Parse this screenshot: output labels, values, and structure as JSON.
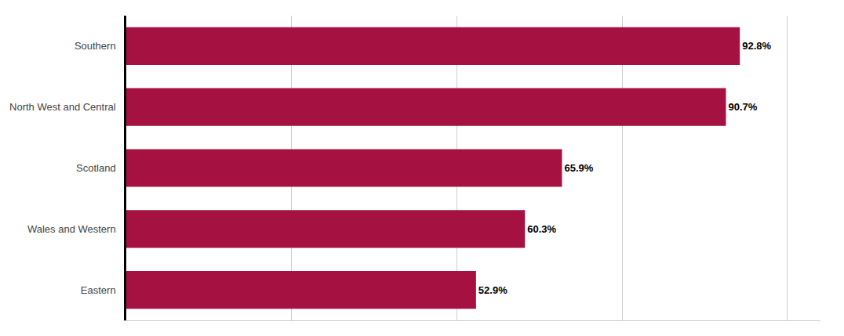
{
  "chart_data": {
    "type": "bar",
    "orientation": "horizontal",
    "categories": [
      "Southern",
      "North West and Central",
      "Scotland",
      "Wales and Western",
      "Eastern"
    ],
    "values": [
      92.8,
      90.7,
      65.9,
      60.3,
      52.9
    ],
    "value_labels": [
      "92.8%",
      "90.7%",
      "65.9%",
      "60.3%",
      "52.9%"
    ],
    "data_labels": true,
    "color": "#A51140",
    "xlim": [
      0,
      105
    ],
    "xticks": [
      25,
      50,
      75,
      100
    ],
    "grid": true,
    "tick_labels": "y"
  }
}
